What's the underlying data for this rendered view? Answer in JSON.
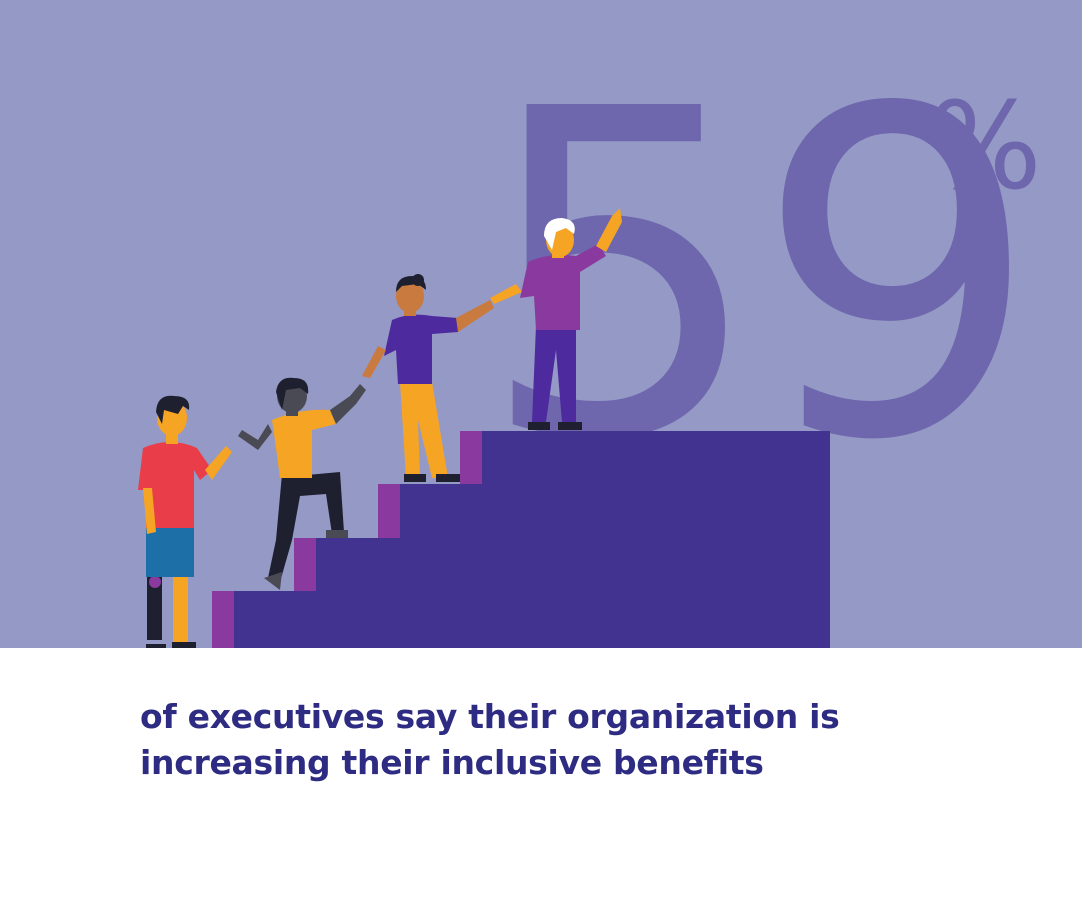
{
  "stat": {
    "value": "59",
    "unit": "%",
    "caption": "of executives say their organization is increasing their inclusive benefits"
  },
  "colors": {
    "background_top": "#9599c5",
    "numeral": "#6e67ad",
    "stairs": "#433391",
    "stair_risers": "#8a3a9e",
    "caption_text": "#2e2c82",
    "background_bottom": "#ffffff"
  },
  "illustration": {
    "subject": "four people helping each other climb a staircase",
    "icons": [
      "staircase-icon",
      "person-prosthetic-leg-icon",
      "person-climbing-icon",
      "person-helping-icon",
      "person-reaching-up-icon"
    ]
  }
}
